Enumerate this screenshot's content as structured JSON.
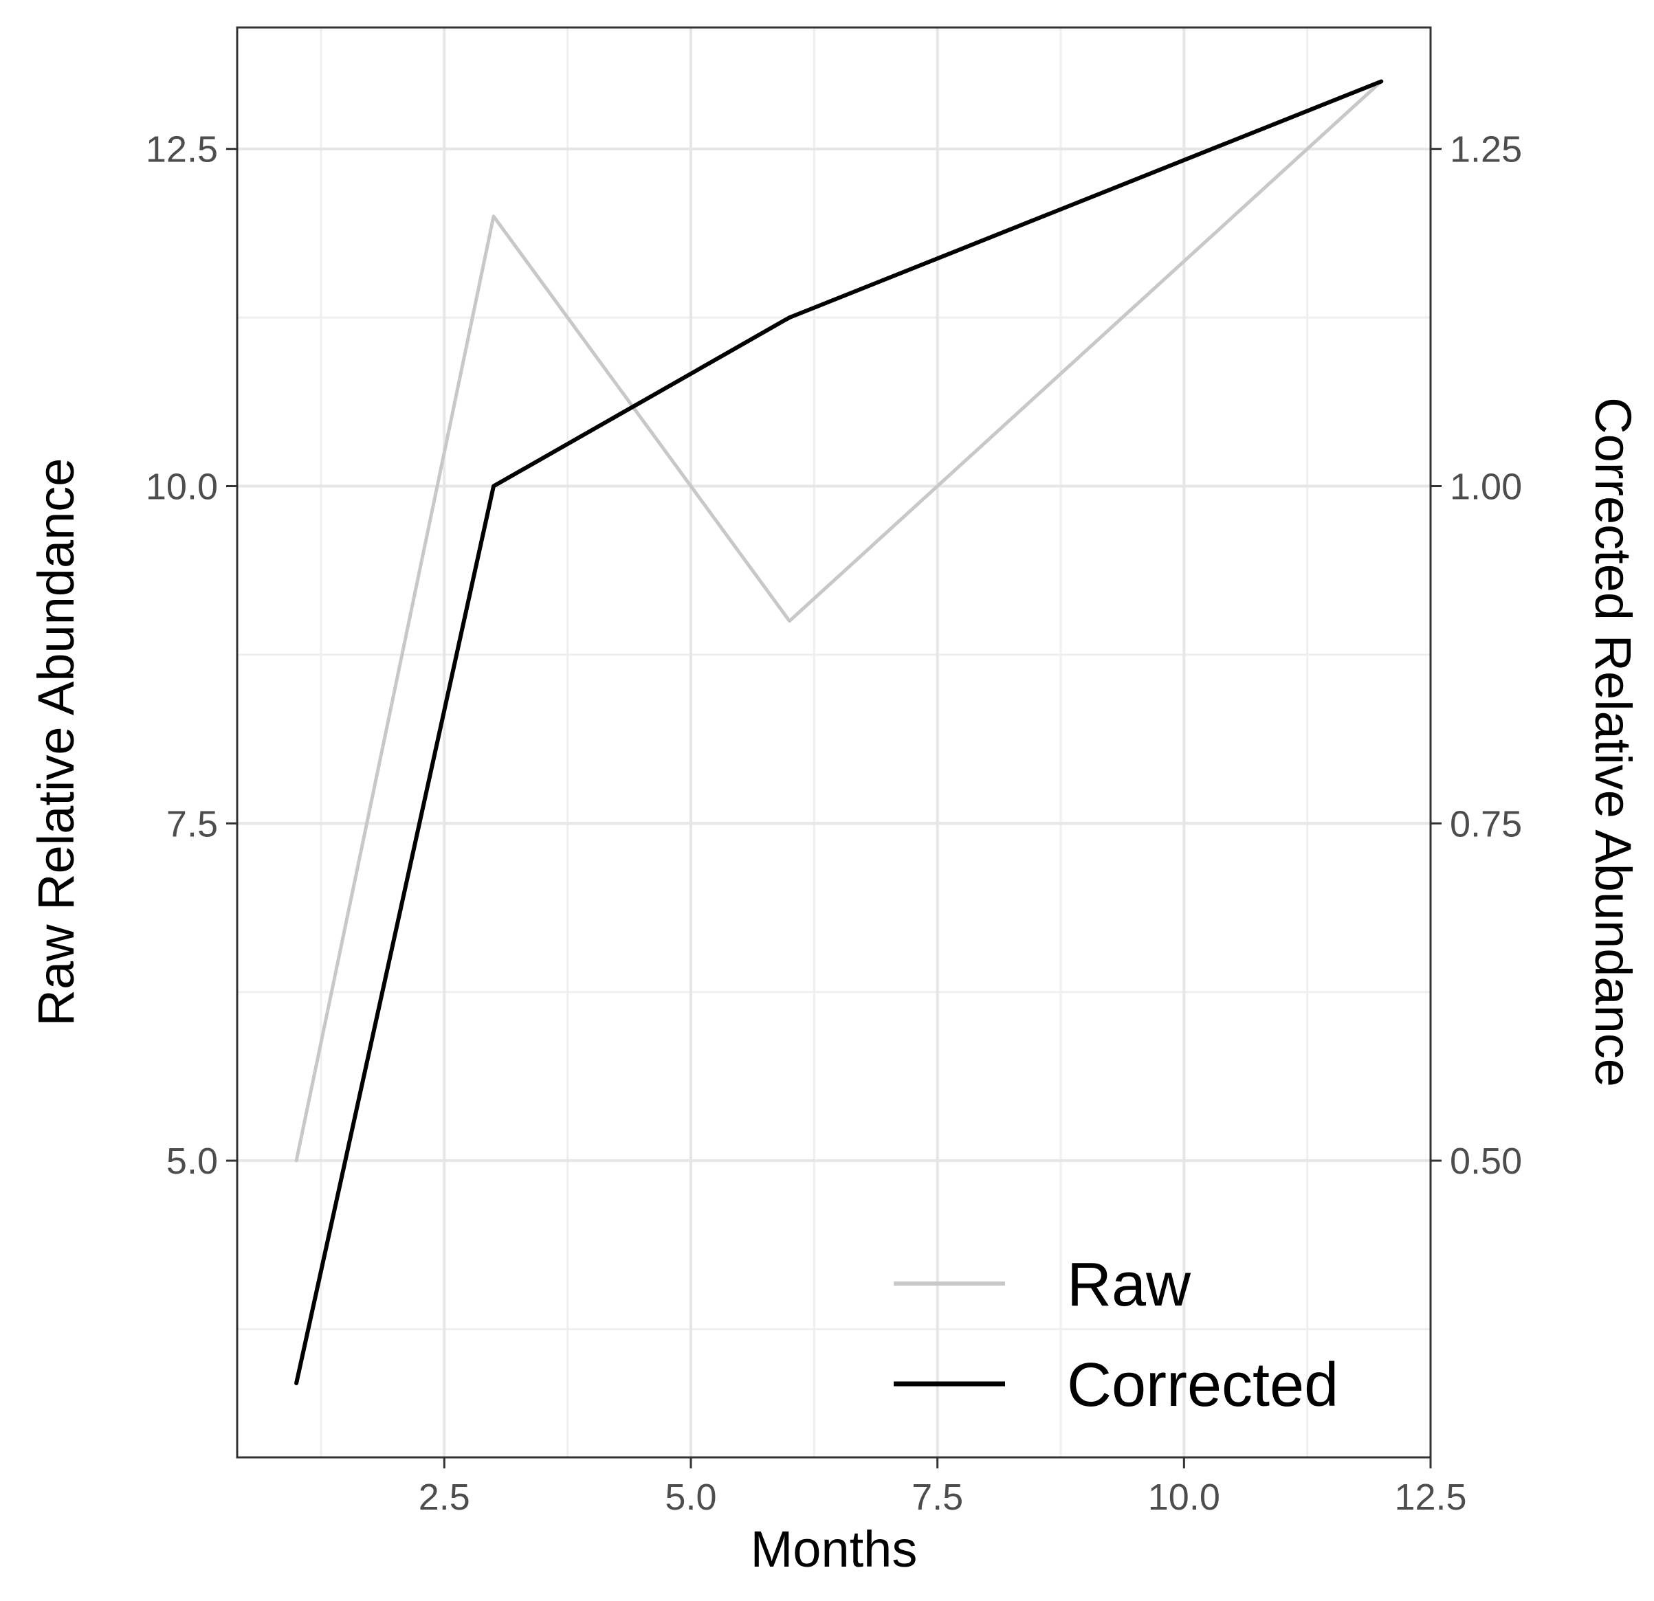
{
  "chart_data": {
    "type": "line",
    "title": "",
    "xlabel": "Months",
    "ylabel": "Raw Relative Abundance",
    "ylabel_right": "Corrected Relative Abundance",
    "xlim": [
      0.4,
      12.5
    ],
    "ylim": [
      2.8,
      13.4
    ],
    "ylim_right": [
      0.28,
      1.34
    ],
    "x_ticks": [
      2.5,
      5.0,
      7.5,
      10.0,
      12.5
    ],
    "x_tick_labels": [
      "2.5",
      "5.0",
      "7.5",
      "10.0",
      "12.5"
    ],
    "y_ticks": [
      5.0,
      7.5,
      10.0,
      12.5
    ],
    "y_tick_labels": [
      "5.0",
      "7.5",
      "10.0",
      "12.5"
    ],
    "y_right_ticks": [
      0.5,
      0.75,
      1.0,
      1.25
    ],
    "y_right_tick_labels": [
      "0.50",
      "0.75",
      "1.00",
      "1.25"
    ],
    "grid": true,
    "legend_position": "bottom-right",
    "series": [
      {
        "name": "Raw",
        "axis": "left",
        "color": "#c8c8c8",
        "x": [
          1,
          3,
          6,
          12
        ],
        "y": [
          5.0,
          12.0,
          9.0,
          13.0
        ]
      },
      {
        "name": "Corrected",
        "axis": "right",
        "color": "#000000",
        "x": [
          1,
          3,
          6,
          12
        ],
        "y": [
          0.335,
          1.0,
          1.125,
          1.3
        ]
      }
    ]
  }
}
